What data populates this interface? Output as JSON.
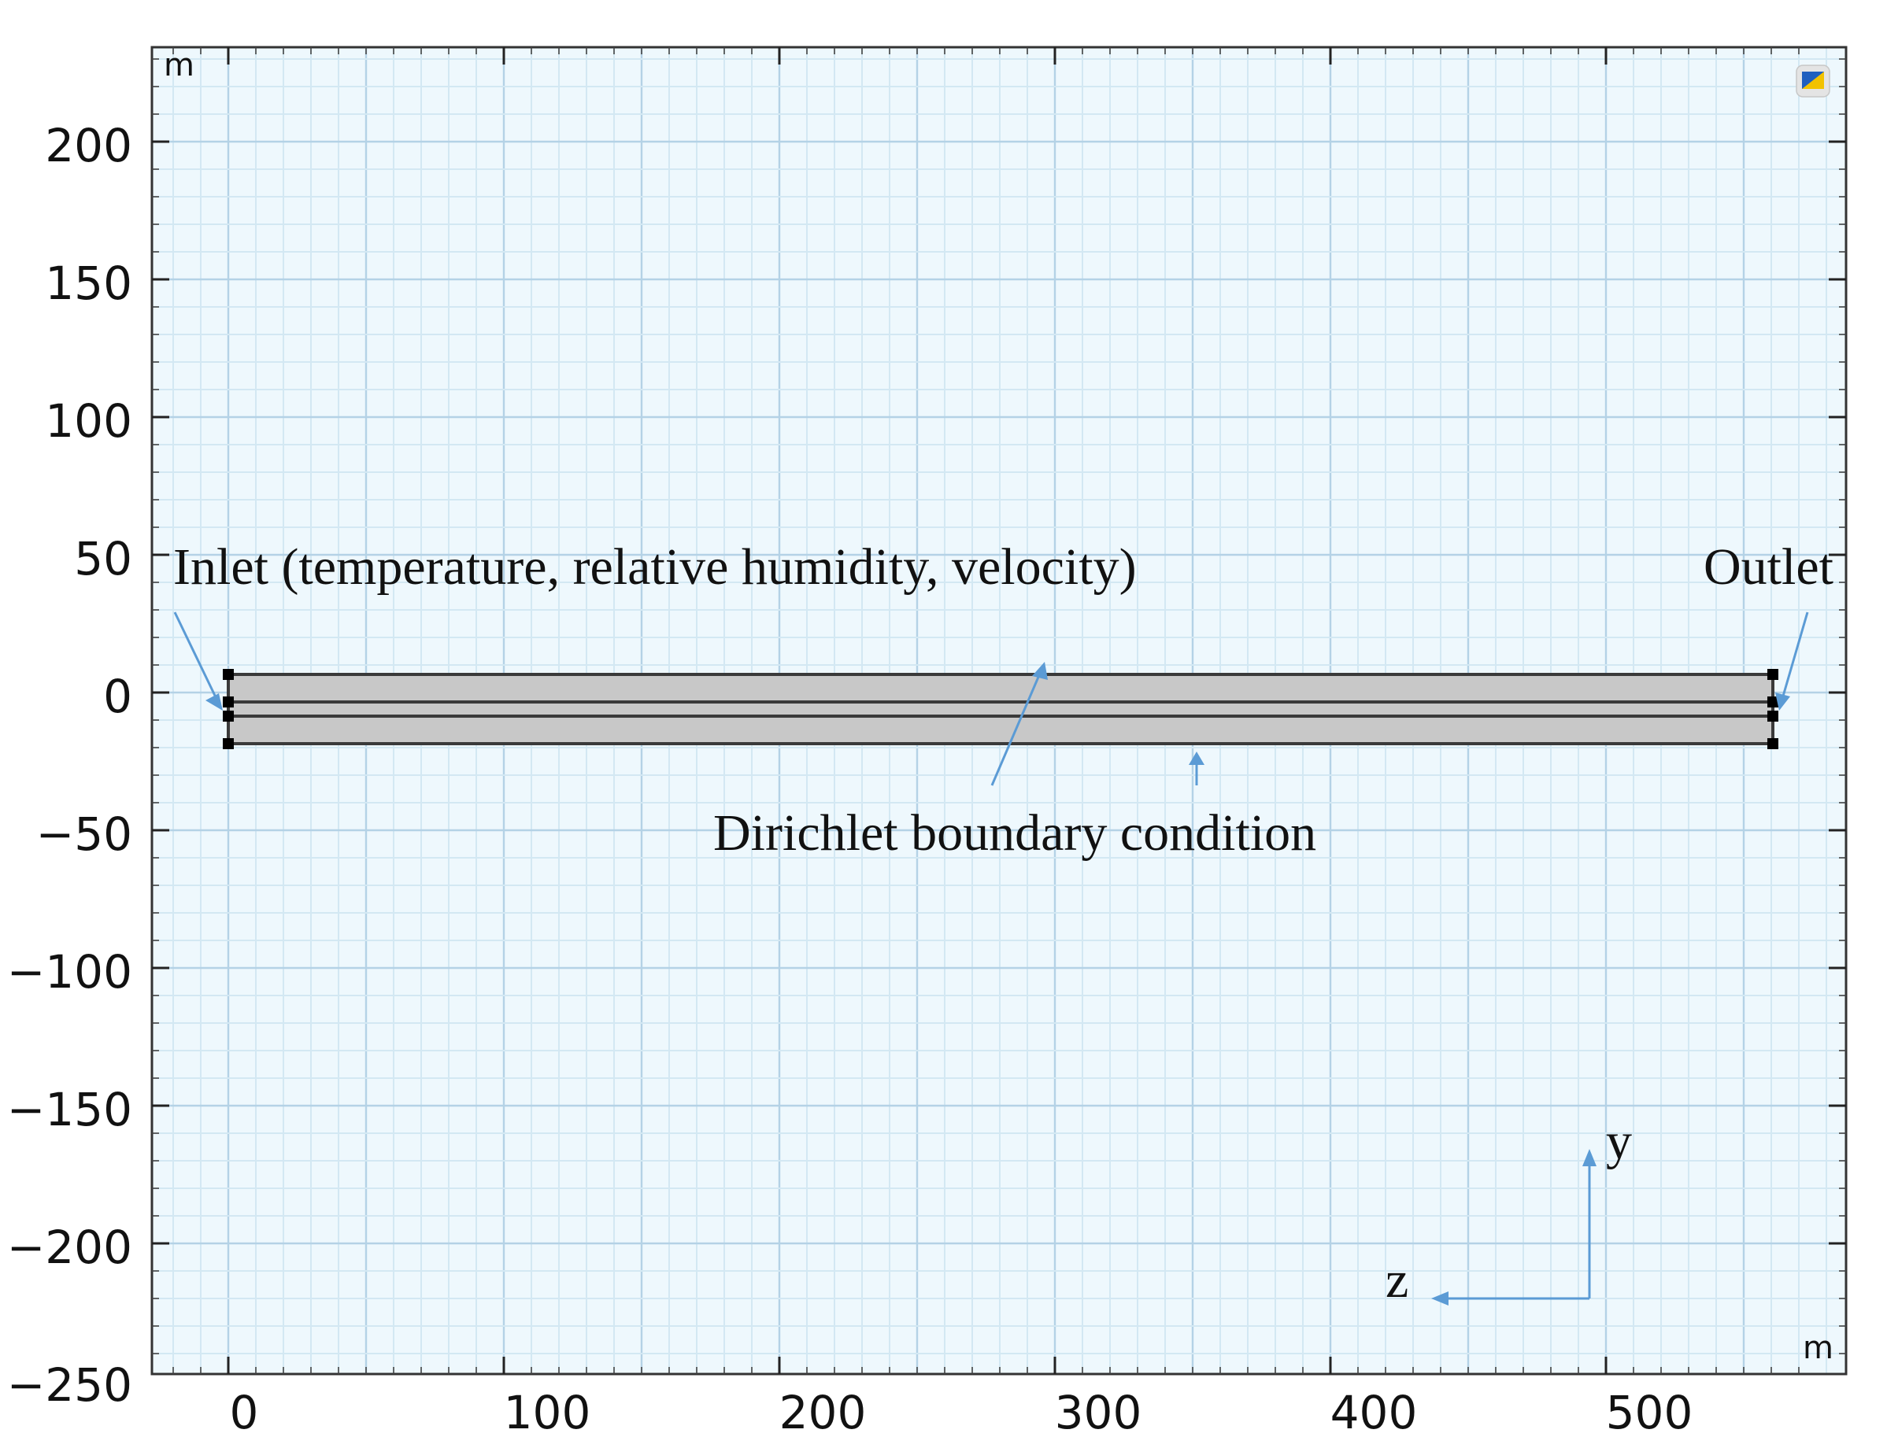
{
  "geometry_view": {
    "x_unit": "m",
    "y_unit": "m",
    "x_ticks": [
      "0",
      "100",
      "200",
      "300",
      "400",
      "500"
    ],
    "y_ticks": [
      "200",
      "150",
      "100",
      "50",
      "0",
      "−50",
      "−100",
      "−150",
      "−200",
      "−250"
    ],
    "toolbar_icon": "color-legend-icon"
  },
  "annotations": {
    "inlet": "Inlet (temperature, relative humidity, velocity)",
    "outlet": "Outlet",
    "dirichlet": "Dirichlet boundary condition"
  },
  "axes_triad": {
    "y_label": "y",
    "z_label": "z"
  },
  "colors": {
    "grid_background": "#eef8fd",
    "domain_fill": "#c8c8c8",
    "annotation_arrow": "#5b9bd5"
  }
}
